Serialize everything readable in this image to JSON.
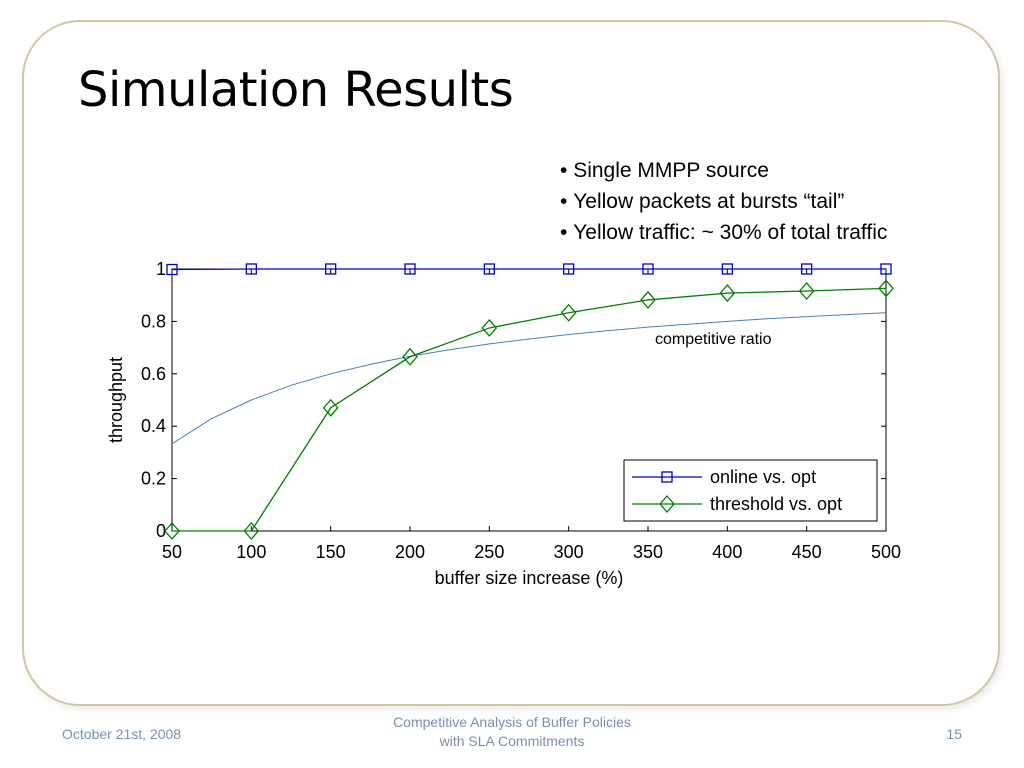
{
  "slide": {
    "title": "Simulation Results",
    "bullets": [
      "Single MMPP source",
      "Yellow packets at bursts “tail”",
      "Yellow traffic: ~ 30% of total traffic"
    ]
  },
  "footer": {
    "date": "October 21st, 2008",
    "center_line1": "Competitive Analysis of Buffer Policies",
    "center_line2": "with SLA Commitments",
    "page": "15"
  },
  "colors": {
    "frame": "#d2c7a2",
    "online": "#0000cc",
    "threshold": "#008000",
    "ratio": "#4a7fb5",
    "footer_text": "#7a8fb0"
  },
  "chart_data": {
    "type": "line",
    "xlabel": "buffer size increase (%)",
    "ylabel": "throughput",
    "xlim": [
      50,
      500
    ],
    "ylim": [
      0,
      1
    ],
    "xticks": [
      50,
      100,
      150,
      200,
      250,
      300,
      350,
      400,
      450,
      500
    ],
    "yticks": [
      0,
      0.2,
      0.4,
      0.6,
      0.8,
      1
    ],
    "ytick_labels": [
      "0",
      "0.2",
      "0.4",
      "0.6",
      "0.8",
      "1"
    ],
    "grid": false,
    "legend_position": "bottom-right",
    "x": [
      50,
      100,
      150,
      200,
      250,
      300,
      350,
      400,
      450,
      500
    ],
    "series": [
      {
        "name": "online vs. opt",
        "marker": "square",
        "color": "#0000cc",
        "values": [
          0.998,
          1,
          1,
          1,
          1,
          1,
          1,
          1,
          1,
          1
        ]
      },
      {
        "name": "threshold vs. opt",
        "marker": "diamond",
        "color": "#008000",
        "values": [
          0,
          0,
          0.47,
          0.665,
          0.775,
          0.833,
          0.882,
          0.908,
          0.916,
          0.926
        ]
      }
    ],
    "reference_curve": {
      "label": "competitive ratio",
      "color": "#4a7fb5",
      "x": [
        50,
        75,
        100,
        125,
        150,
        175,
        200,
        225,
        250,
        275,
        300,
        325,
        350,
        375,
        400,
        425,
        450,
        475,
        500
      ],
      "values": [
        0.333,
        0.429,
        0.5,
        0.556,
        0.6,
        0.636,
        0.667,
        0.692,
        0.714,
        0.733,
        0.75,
        0.765,
        0.778,
        0.789,
        0.8,
        0.81,
        0.818,
        0.826,
        0.833
      ]
    }
  }
}
